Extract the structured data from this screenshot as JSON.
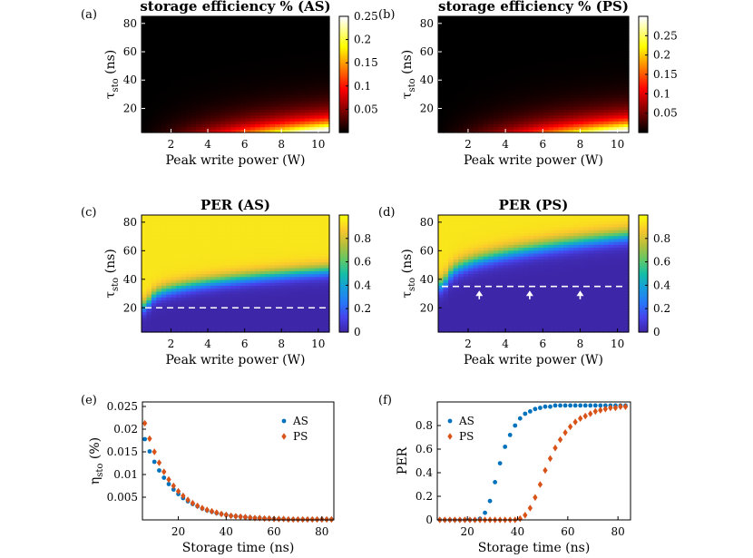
{
  "figure": {
    "panels": [
      "(a)",
      "(b)",
      "(c)",
      "(d)",
      "(e)",
      "(f)"
    ]
  },
  "colors": {
    "as_series": "#0072BD",
    "ps_series": "#D95319",
    "dashed_line": "#ffffff"
  },
  "chart_data": [
    {
      "id": "a",
      "type": "heatmap",
      "colormap": "hot",
      "title": "storage efficiency % (AS)",
      "xlabel": "Peak write power (W)",
      "ylabel_main": "τ",
      "ylabel_sub": "sto",
      "ylabel_unit": " (ns)",
      "xlim": [
        0.4,
        10.6
      ],
      "ylim": [
        3,
        85
      ],
      "xticks": [
        2,
        4,
        6,
        8,
        10
      ],
      "yticks": [
        20,
        40,
        60,
        80
      ],
      "colorbar": {
        "range": [
          0,
          0.25
        ],
        "ticks": [
          0.05,
          0.1,
          0.15,
          0.2,
          0.25
        ],
        "tick_labels": [
          "0.05",
          "0.1",
          "0.15",
          "0.2",
          "0.25"
        ]
      },
      "model": {
        "peak": 0.25,
        "power_exp": 1.6,
        "tau_decay": 9
      }
    },
    {
      "id": "b",
      "type": "heatmap",
      "colormap": "hot",
      "title": "storage efficiency % (PS)",
      "xlabel": "Peak write power (W)",
      "ylabel_main": "τ",
      "ylabel_sub": "sto",
      "ylabel_unit": " (ns)",
      "xlim": [
        0.4,
        10.6
      ],
      "ylim": [
        3,
        85
      ],
      "xticks": [
        2,
        4,
        6,
        8,
        10
      ],
      "yticks": [
        20,
        40,
        60,
        80
      ],
      "colorbar": {
        "range": [
          0,
          0.3
        ],
        "ticks": [
          0.05,
          0.1,
          0.15,
          0.2,
          0.25
        ],
        "tick_labels": [
          "0.05",
          "0.1",
          "0.15",
          "0.2",
          "0.25"
        ]
      },
      "model": {
        "peak": 0.29,
        "power_exp": 1.6,
        "tau_decay": 9
      }
    },
    {
      "id": "c",
      "type": "heatmap",
      "colormap": "parula",
      "title": "PER (AS)",
      "xlabel": "Peak write power (W)",
      "ylabel_main": "τ",
      "ylabel_sub": "sto",
      "ylabel_unit": " (ns)",
      "xlim": [
        0.4,
        10.6
      ],
      "ylim": [
        3,
        85
      ],
      "xticks": [
        2,
        4,
        6,
        8,
        10
      ],
      "yticks": [
        20,
        40,
        60,
        80
      ],
      "colorbar": {
        "range": [
          0,
          1
        ],
        "ticks": [
          0,
          0.2,
          0.4,
          0.6,
          0.8
        ],
        "tick_labels": [
          "0",
          "0.2",
          "0.4",
          "0.6",
          "0.8"
        ]
      },
      "threshold": {
        "tau_at_low_power": 20,
        "tau_at_1W": 27,
        "tau_at_10W": 46,
        "width": 6
      },
      "dashed_line": {
        "y": 20,
        "x_from": 0.4,
        "x_to": 10.6
      },
      "arrows": []
    },
    {
      "id": "d",
      "type": "heatmap",
      "colormap": "parula",
      "title": "PER (PS)",
      "xlabel": "Peak write power (W)",
      "ylabel_main": "τ",
      "ylabel_sub": "sto",
      "ylabel_unit": " (ns)",
      "xlim": [
        0.4,
        10.6
      ],
      "ylim": [
        3,
        85
      ],
      "xticks": [
        2,
        4,
        6,
        8,
        10
      ],
      "yticks": [
        20,
        40,
        60,
        80
      ],
      "colorbar": {
        "range": [
          0,
          1
        ],
        "ticks": [
          0,
          0.2,
          0.4,
          0.6,
          0.8
        ],
        "tick_labels": [
          "0",
          "0.2",
          "0.4",
          "0.6",
          "0.8"
        ]
      },
      "threshold": {
        "tau_at_low_power": 35,
        "tau_at_1W": 42,
        "tau_at_10W": 70,
        "width": 7
      },
      "dashed_line": {
        "y": 35,
        "x_from": 0.4,
        "x_to": 10.6
      },
      "arrows": [
        {
          "x": 2.6,
          "y_from": 26,
          "y_to": 34
        },
        {
          "x": 5.3,
          "y_from": 26,
          "y_to": 34
        },
        {
          "x": 8.0,
          "y_from": 26,
          "y_to": 34
        }
      ]
    },
    {
      "id": "e",
      "type": "scatter",
      "xlabel": "Storage time (ns)",
      "ylabel_main": "η",
      "ylabel_sub": "sto",
      "ylabel_unit": " (%)",
      "xlim": [
        5,
        85
      ],
      "ylim": [
        0,
        0.026
      ],
      "xticks": [
        20,
        40,
        60,
        80
      ],
      "yticks": [
        0.005,
        0.01,
        0.015,
        0.02,
        0.025
      ],
      "ytick_labels": [
        "0.005",
        "0.01",
        "0.015",
        "0.02",
        "0.025"
      ],
      "legend": "top-right",
      "series": [
        {
          "name": "AS",
          "marker": "circle",
          "x": [
            6,
            8,
            10,
            12,
            14,
            16,
            18,
            20,
            22,
            24,
            26,
            28,
            30,
            32,
            34,
            36,
            38,
            40,
            42,
            44,
            46,
            48,
            50,
            52,
            54,
            56,
            58,
            60,
            62,
            64,
            66,
            68,
            70,
            72,
            74,
            76,
            78,
            80,
            82,
            84
          ],
          "y": [
            0.0178,
            0.0151,
            0.0128,
            0.0109,
            0.0093,
            0.0079,
            0.0067,
            0.0057,
            0.0048,
            0.0041,
            0.0035,
            0.003,
            0.0025,
            0.0021,
            0.0018,
            0.0015,
            0.0013,
            0.0011,
            0.0009,
            0.0008,
            0.0007,
            0.0006,
            0.0005,
            0.0004,
            0.0004,
            0.0003,
            0.0003,
            0.0002,
            0.0002,
            0.0002,
            0.0001,
            0.0001,
            0.0001,
            0.0001,
            0.0001,
            0.0001,
            0.0001,
            0.0001,
            0.0001,
            0.0001
          ]
        },
        {
          "name": "PS",
          "marker": "diamond",
          "x": [
            6,
            8,
            10,
            12,
            14,
            16,
            18,
            20,
            22,
            24,
            26,
            28,
            30,
            32,
            34,
            36,
            38,
            40,
            42,
            44,
            46,
            48,
            50,
            52,
            54,
            56,
            58,
            60,
            62,
            64,
            66,
            68,
            70,
            72,
            74,
            76,
            78,
            80,
            82,
            84
          ],
          "y": [
            0.0213,
            0.0179,
            0.015,
            0.0126,
            0.0106,
            0.0089,
            0.0075,
            0.0063,
            0.0053,
            0.0044,
            0.0037,
            0.0031,
            0.0026,
            0.0022,
            0.0019,
            0.0016,
            0.0013,
            0.0011,
            0.0009,
            0.0008,
            0.0007,
            0.0006,
            0.0005,
            0.0004,
            0.0004,
            0.0003,
            0.0003,
            0.0002,
            0.0002,
            0.0002,
            0.0001,
            0.0001,
            0.0001,
            0.0001,
            0.0001,
            0.0001,
            0.0001,
            0.0001,
            0.0001,
            0.0001
          ]
        }
      ]
    },
    {
      "id": "f",
      "type": "scatter",
      "xlabel": "Storage time (ns)",
      "ylabel_main": "PER",
      "ylabel_sub": "",
      "ylabel_unit": "",
      "xlim": [
        8,
        85
      ],
      "ylim": [
        0,
        1
      ],
      "xticks": [
        20,
        40,
        60,
        80
      ],
      "yticks": [
        0,
        0.2,
        0.4,
        0.6,
        0.8
      ],
      "ytick_labels": [
        "0",
        "0.2",
        "0.4",
        "0.6",
        "0.8"
      ],
      "legend": "top-left",
      "series": [
        {
          "name": "AS",
          "marker": "circle",
          "x": [
            9,
            11,
            13,
            15,
            17,
            19,
            21,
            23,
            25,
            27,
            29,
            31,
            33,
            35,
            37,
            39,
            41,
            43,
            45,
            47,
            49,
            51,
            53,
            55,
            57,
            59,
            61,
            63,
            65,
            67,
            69,
            71,
            73,
            75,
            77,
            79,
            81,
            83
          ],
          "y": [
            0,
            0,
            0,
            0,
            0,
            0,
            0,
            0,
            0.01,
            0.06,
            0.16,
            0.32,
            0.48,
            0.62,
            0.72,
            0.8,
            0.86,
            0.9,
            0.92,
            0.94,
            0.95,
            0.96,
            0.96,
            0.97,
            0.97,
            0.97,
            0.97,
            0.97,
            0.97,
            0.97,
            0.97,
            0.97,
            0.97,
            0.97,
            0.97,
            0.97,
            0.97,
            0.97
          ]
        },
        {
          "name": "PS",
          "marker": "diamond",
          "x": [
            9,
            11,
            13,
            15,
            17,
            19,
            21,
            23,
            25,
            27,
            29,
            31,
            33,
            35,
            37,
            39,
            41,
            43,
            45,
            47,
            49,
            51,
            53,
            55,
            57,
            59,
            61,
            63,
            65,
            67,
            69,
            71,
            73,
            75,
            77,
            79,
            81,
            83
          ],
          "y": [
            0,
            0,
            0,
            0,
            0,
            0,
            0,
            0,
            0,
            0,
            0,
            0,
            0,
            0,
            0,
            0,
            0.01,
            0.04,
            0.1,
            0.19,
            0.3,
            0.42,
            0.52,
            0.61,
            0.68,
            0.74,
            0.79,
            0.83,
            0.86,
            0.88,
            0.9,
            0.92,
            0.93,
            0.94,
            0.95,
            0.95,
            0.96,
            0.96
          ]
        }
      ]
    }
  ]
}
